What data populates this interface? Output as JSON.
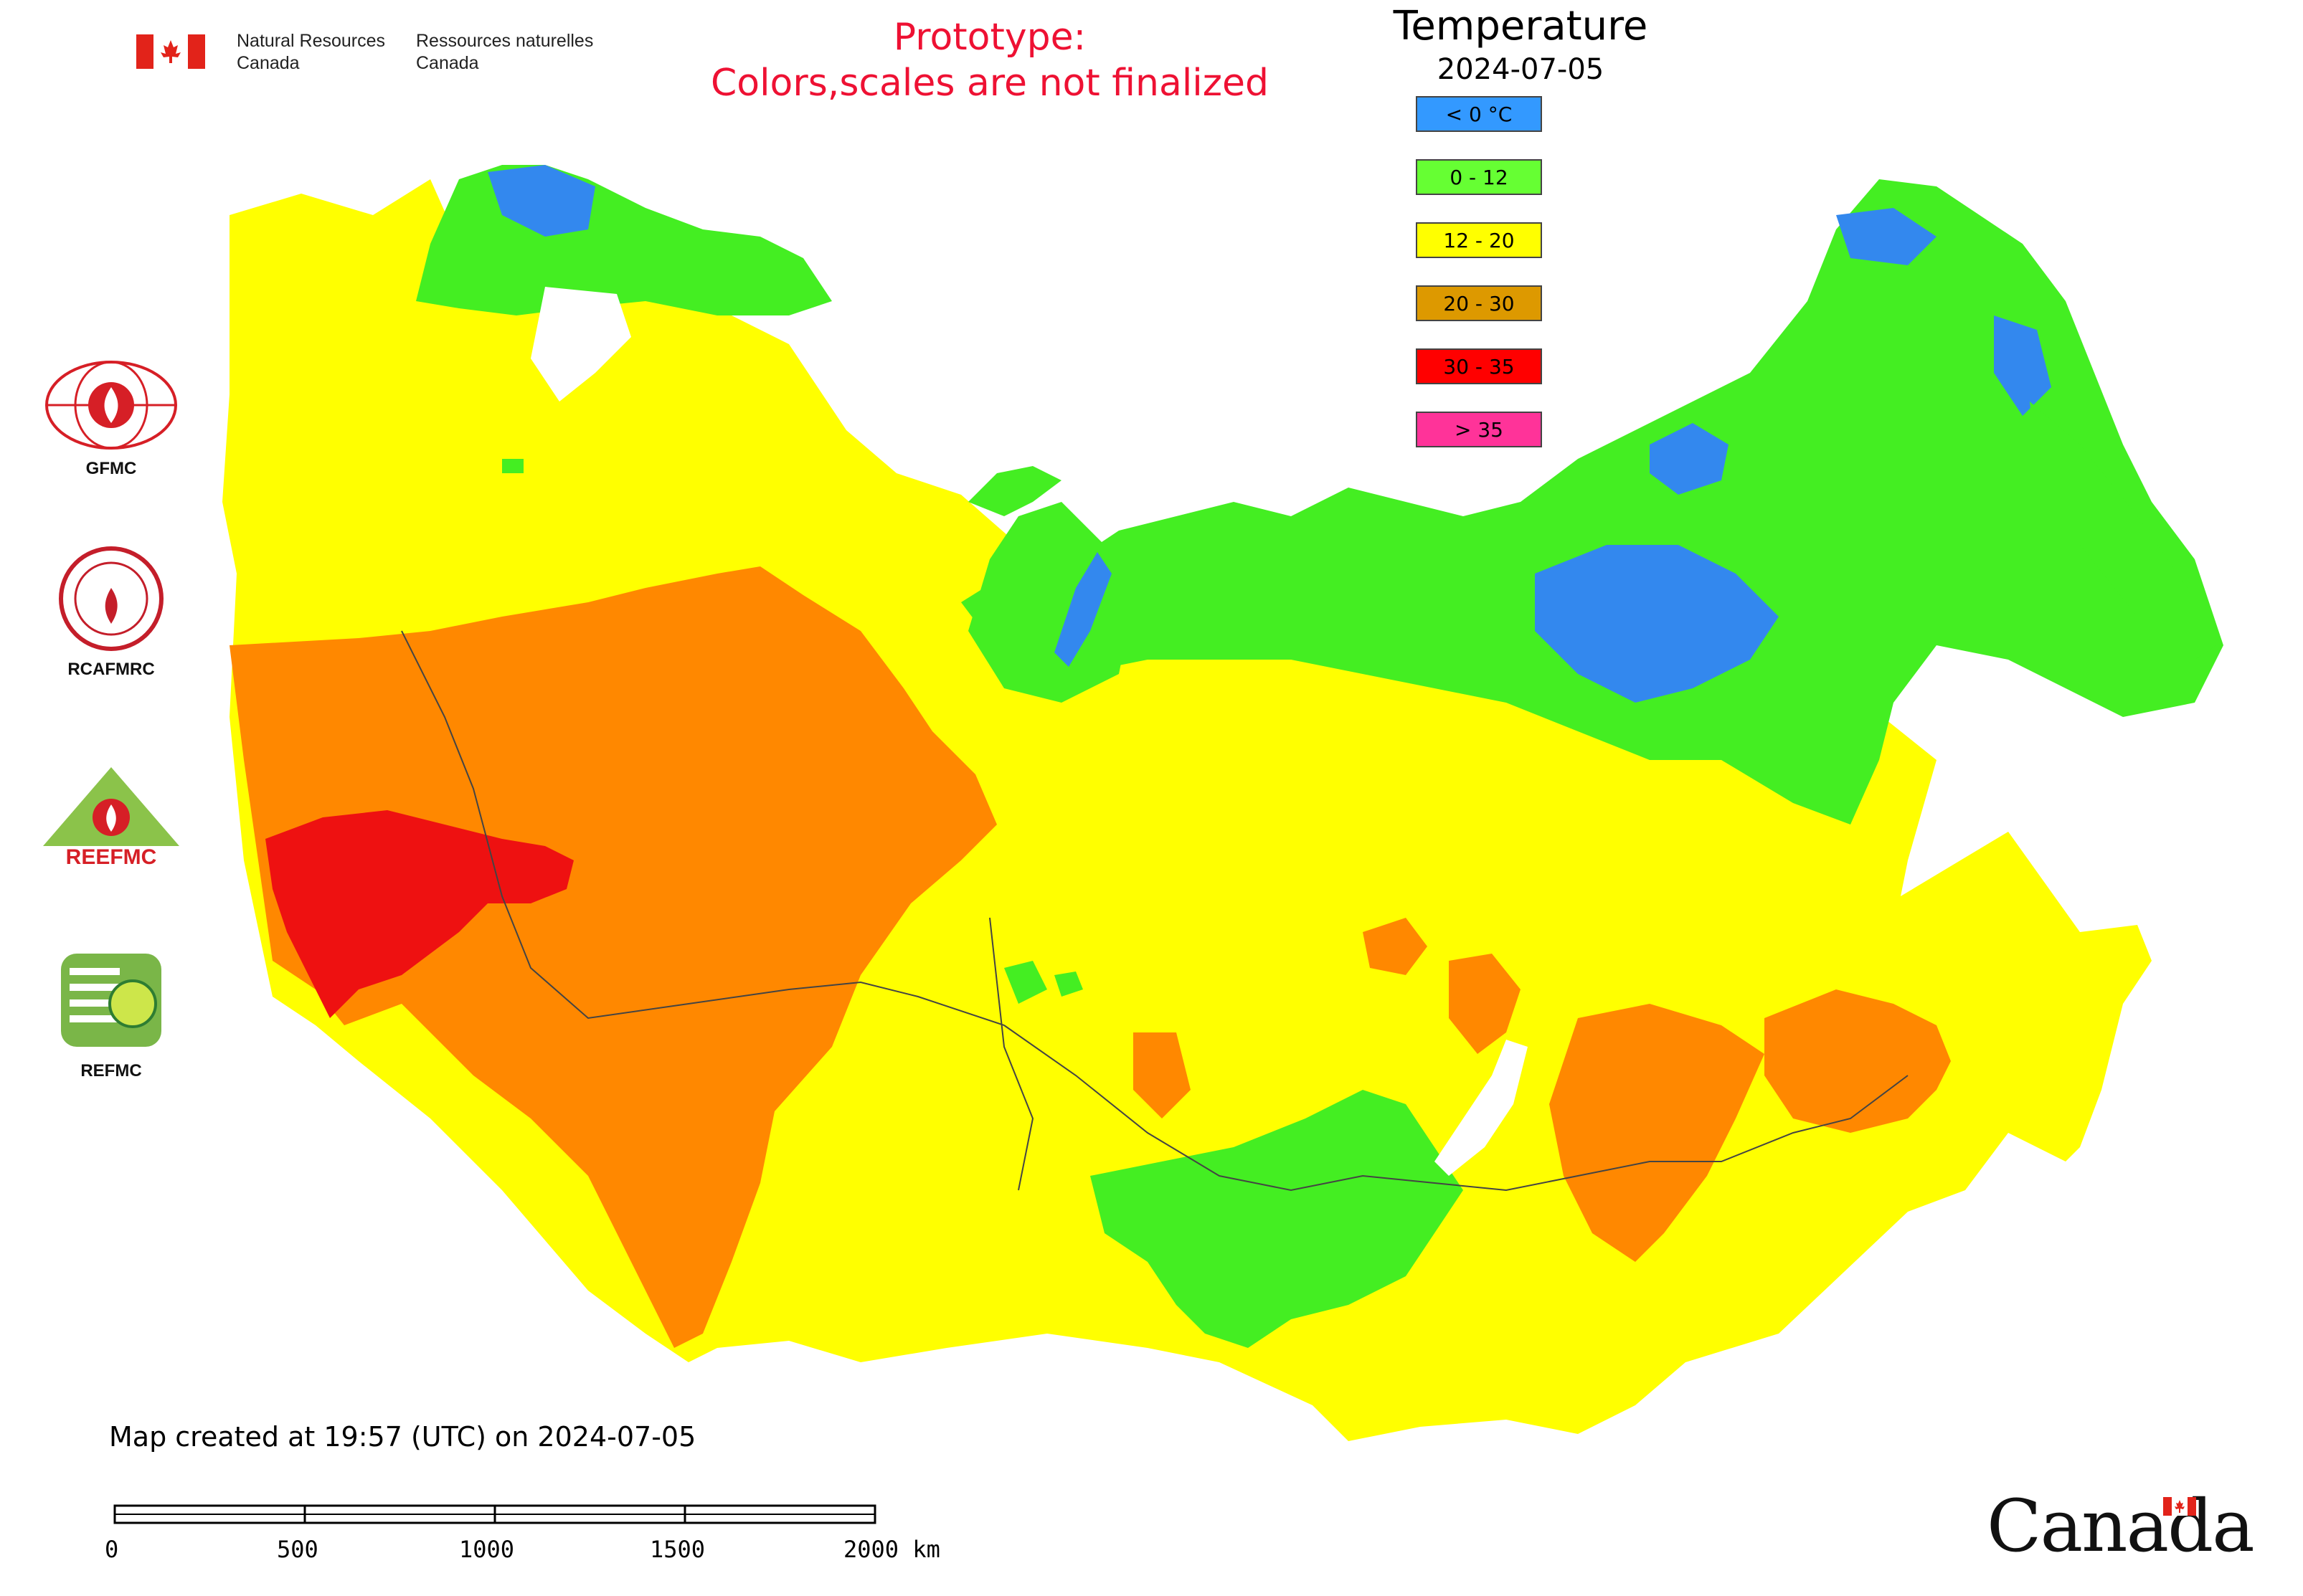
{
  "header": {
    "dept_en": "Natural Resources\nCanada",
    "dept_fr": "Ressources naturelles\nCanada",
    "prototype_line1": "Prototype:",
    "prototype_line2": "Colors,scales are not finalized",
    "title": "Temperature",
    "date": "2024-07-05"
  },
  "legend": {
    "items": [
      {
        "label": "< 0 °C",
        "color": "#3399ff"
      },
      {
        "label": "0 - 12",
        "color": "#66ff33"
      },
      {
        "label": "12 - 20",
        "color": "#ffff00"
      },
      {
        "label": "20 - 30",
        "color": "#dd9900"
      },
      {
        "label": "30 - 35",
        "color": "#ff0000"
      },
      {
        "label": "> 35",
        "color": "#ff3399"
      }
    ]
  },
  "map_colors": {
    "cold": "#3388ee",
    "cool": "#44ee22",
    "mild": "#ffff00",
    "warm": "#ff8800",
    "hot": "#ee1111",
    "water": "#ffffff",
    "border": "#444444"
  },
  "logos": {
    "gfmc": "GFMC",
    "rcafmrc": "RCAFMRC",
    "reefmc": "REEFMC",
    "refmc": "REFMC",
    "ree_text": "REEFMC"
  },
  "footer": {
    "created": "Map created at 19:57 (UTC) on 2024-07-05",
    "scale_labels": [
      "0",
      "500",
      "1000",
      "1500",
      "2000 km"
    ],
    "wordmark": "Canada"
  }
}
